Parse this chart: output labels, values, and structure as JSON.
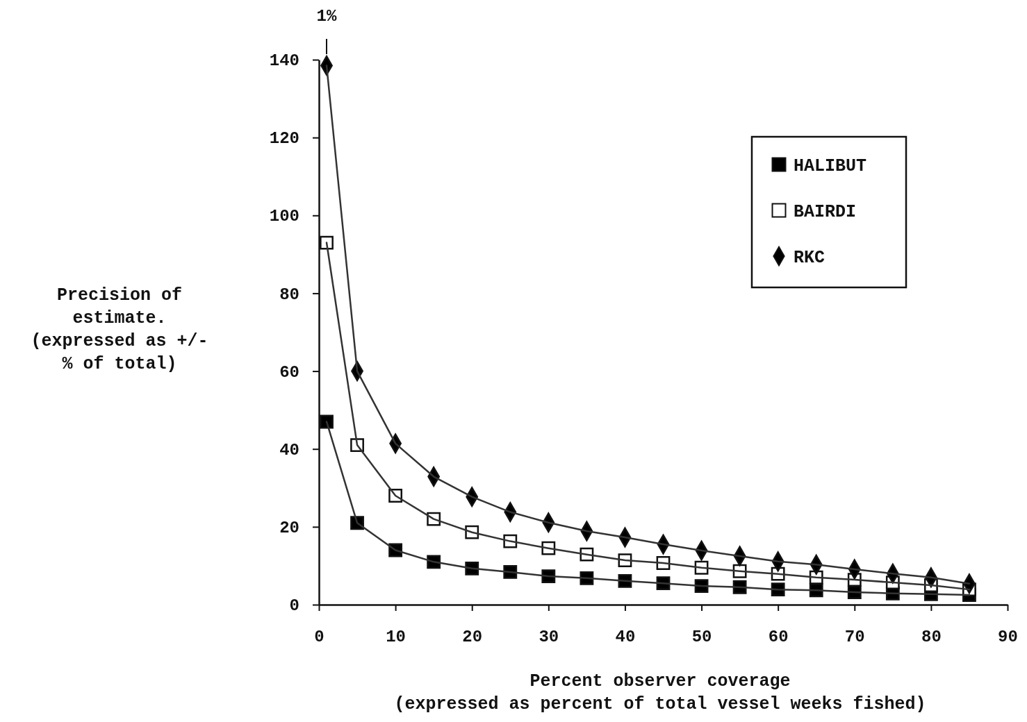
{
  "chart_data": {
    "type": "line",
    "xlabel": "Percent observer coverage\n(expressed as percent of total vessel weeks fished)",
    "ylabel": "Precision of\nestimate.\n(expressed as +/-\n% of total)",
    "x": [
      1,
      5,
      10,
      15,
      20,
      25,
      30,
      35,
      40,
      45,
      50,
      55,
      60,
      65,
      70,
      75,
      80,
      85
    ],
    "xlim": [
      0,
      90
    ],
    "xticks": [
      0,
      10,
      20,
      30,
      40,
      50,
      60,
      70,
      80,
      90
    ],
    "ylim": [
      0,
      140
    ],
    "yticks": [
      0,
      20,
      40,
      60,
      80,
      100,
      120,
      140
    ],
    "grid": false,
    "legend": "top right",
    "line_style": "solid",
    "annotations": [
      {
        "text": "1%",
        "x": 1,
        "y": 140
      }
    ],
    "series": [
      {
        "name": "HALIBUT",
        "color": "#000000",
        "marker": "square",
        "values": [
          47,
          21,
          14,
          11,
          9.3,
          8.4,
          7.3,
          6.8,
          6.1,
          5.5,
          4.8,
          4.5,
          3.9,
          3.7,
          3.2,
          2.9,
          2.7,
          2.5
        ]
      },
      {
        "name": "BAIRDI",
        "color": "#ffffff",
        "marker": "square",
        "values": [
          93,
          41,
          28,
          22,
          18.6,
          16.3,
          14.5,
          12.9,
          11.4,
          10.7,
          9.5,
          8.6,
          7.9,
          7,
          6.4,
          5.7,
          5,
          3.9
        ]
      },
      {
        "name": "RKC",
        "color": "#000000",
        "marker": "diamond",
        "values": [
          138.5,
          60,
          41.4,
          32.9,
          27.7,
          23.8,
          21.1,
          18.9,
          17.3,
          15.5,
          13.9,
          12.5,
          11.1,
          10.3,
          9.1,
          8,
          7,
          5.4
        ]
      }
    ]
  }
}
